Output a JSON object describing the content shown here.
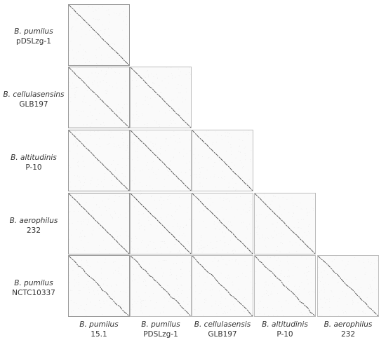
{
  "rows": [
    {
      "species": "B. pumilus",
      "strain": "pDSLzg-1"
    },
    {
      "species": "B. cellulasensins",
      "strain": "GLB197"
    },
    {
      "species": "B. altitudinis",
      "strain": "P-10"
    },
    {
      "species": "B. aerophilus",
      "strain": "232"
    },
    {
      "species": "B. pumilus",
      "strain": "NCTC10337"
    }
  ],
  "columns": [
    {
      "species": "B. pumilus",
      "strain": "15.1"
    },
    {
      "species": "B. pumilus",
      "strain": "PDSLzg-1"
    },
    {
      "species": "B. cellulasensis",
      "strain": "GLB197"
    },
    {
      "species": "B. altitudinis",
      "strain": "P-10"
    },
    {
      "species": "B. aerophilus",
      "strain": "232"
    }
  ],
  "colors": {
    "diagonal": "#555555",
    "noise": "#e4e4e4",
    "cell_border": "#bdbdbd"
  }
}
